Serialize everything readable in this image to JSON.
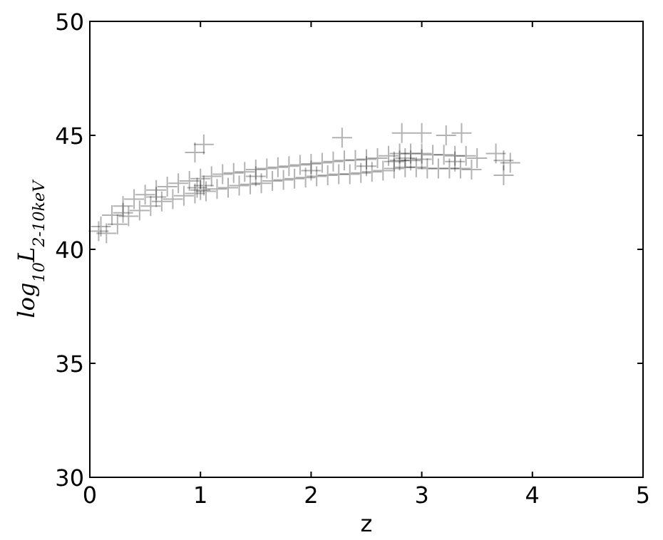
{
  "chart_data": {
    "type": "scatter",
    "xlabel": "z",
    "ylabel": "log$_{10}$L$_{2-10keV}$",
    "xlim": [
      0,
      5
    ],
    "ylim": [
      30,
      50
    ],
    "xticks": [
      0,
      1,
      2,
      3,
      4,
      5
    ],
    "yticks": [
      30,
      35,
      40,
      45,
      50
    ],
    "grid": false,
    "marker": "cross",
    "series": [
      {
        "color": "#000000",
        "x": [
          0.1,
          0.15,
          0.2,
          0.25,
          0.3,
          0.35,
          0.4,
          0.45,
          0.5,
          0.55,
          0.6,
          0.65,
          0.7,
          0.75,
          0.8,
          0.85,
          0.9,
          0.95,
          1.0,
          1.05,
          1.1,
          1.15,
          1.2,
          1.25,
          1.3,
          1.35,
          1.4,
          1.45,
          1.5,
          1.55,
          1.6,
          1.65,
          1.7,
          1.75,
          1.8,
          1.85,
          1.9,
          1.95,
          2.0,
          2.05,
          2.1,
          2.15,
          2.2,
          2.25,
          2.3,
          2.35,
          2.4,
          2.45,
          2.5,
          2.55,
          2.6,
          2.65,
          2.7,
          2.75,
          2.8,
          2.85,
          2.9,
          2.95,
          3.0,
          3.05,
          3.1,
          3.15,
          3.2,
          3.25,
          3.3,
          3.35,
          3.4,
          3.45,
          3.5,
          0.08,
          0.3,
          0.6,
          0.97,
          1.0,
          1.03,
          1.5,
          2.0,
          2.5,
          2.75,
          2.8,
          2.85,
          2.9,
          3.0,
          3.3,
          0.95,
          1.03,
          2.28,
          2.82,
          3.0,
          3.22,
          3.36,
          3.67,
          3.74,
          3.8,
          3.74
        ],
        "values": [
          41.0,
          40.7,
          41.5,
          41.1,
          41.9,
          41.45,
          42.2,
          41.7,
          42.4,
          41.9,
          42.6,
          42.1,
          42.75,
          42.2,
          42.9,
          42.35,
          43.0,
          42.45,
          43.1,
          42.55,
          43.2,
          42.65,
          43.3,
          42.7,
          43.35,
          42.8,
          43.4,
          42.85,
          43.5,
          42.9,
          43.55,
          43.0,
          43.6,
          43.05,
          43.65,
          43.1,
          43.7,
          43.15,
          43.75,
          43.2,
          43.8,
          43.25,
          43.85,
          43.3,
          43.9,
          43.3,
          43.92,
          43.35,
          43.95,
          43.4,
          44.0,
          43.45,
          44.1,
          43.55,
          44.2,
          43.6,
          44.2,
          43.6,
          44.2,
          43.55,
          44.15,
          43.55,
          44.15,
          43.55,
          44.1,
          43.55,
          44.1,
          43.5,
          44.0,
          40.8,
          41.6,
          42.3,
          42.7,
          42.6,
          42.8,
          43.2,
          43.45,
          43.65,
          43.85,
          43.9,
          44.0,
          43.9,
          43.95,
          43.85,
          44.25,
          44.6,
          44.9,
          45.1,
          45.1,
          45.0,
          45.1,
          44.2,
          43.9,
          43.8,
          43.25
        ]
      }
    ]
  }
}
